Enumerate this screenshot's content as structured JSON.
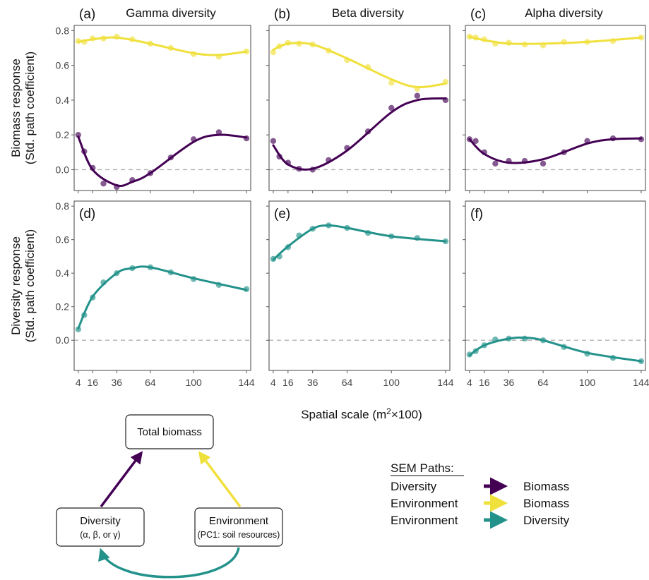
{
  "figure": {
    "xlabel_prefix": "Spatial scale (m",
    "xlabel_sup": "2",
    "xlabel_suffix": "×100)",
    "ylabel_top_line1": "Biomass response",
    "ylabel_top_line2": "(Std. path coefficient)",
    "ylabel_bottom_line1": "Diversity response",
    "ylabel_bottom_line2": "(Std. path coefficient)",
    "colors": {
      "environment": "#f0e03c",
      "diversity": "#440154",
      "env_diversity": "#23928b",
      "zero_line": "#b0b0b0",
      "frame": "#555555"
    }
  },
  "chart_data": [
    {
      "type": "scatter",
      "panel_label": "(a)",
      "title": "Gamma diversity",
      "x_ticks": [
        4,
        16,
        36,
        64,
        100,
        144
      ],
      "y_ticks": [
        "0.0",
        "0.2",
        "0.4",
        "0.6",
        "0.8"
      ],
      "ylim": [
        -0.12,
        0.83
      ],
      "series": [
        {
          "key": "environment",
          "color": "#f0e03c",
          "x": [
            4,
            9,
            16,
            25,
            36,
            49,
            64,
            81,
            100,
            121,
            144
          ],
          "y": [
            0.74,
            0.735,
            0.755,
            0.755,
            0.765,
            0.75,
            0.725,
            0.7,
            0.665,
            0.65,
            0.68
          ],
          "fit": [
            [
              4,
              0.735
            ],
            [
              16,
              0.75
            ],
            [
              36,
              0.76
            ],
            [
              64,
              0.725
            ],
            [
              100,
              0.67
            ],
            [
              121,
              0.66
            ],
            [
              144,
              0.68
            ]
          ]
        },
        {
          "key": "diversity",
          "color": "#440154",
          "x": [
            4,
            9,
            16,
            25,
            36,
            49,
            64,
            81,
            100,
            121,
            144
          ],
          "y": [
            0.2,
            0.105,
            0.01,
            -0.08,
            -0.1,
            -0.06,
            -0.02,
            0.07,
            0.175,
            0.215,
            0.18
          ],
          "fit": [
            [
              4,
              0.19
            ],
            [
              16,
              0.0
            ],
            [
              36,
              -0.09
            ],
            [
              49,
              -0.07
            ],
            [
              64,
              -0.02
            ],
            [
              100,
              0.16
            ],
            [
              121,
              0.2
            ],
            [
              144,
              0.185
            ]
          ]
        }
      ]
    },
    {
      "type": "scatter",
      "panel_label": "(b)",
      "title": "Beta diversity",
      "x_ticks": [
        4,
        16,
        36,
        64,
        100,
        144
      ],
      "y_ticks": [
        "0.0",
        "0.2",
        "0.4",
        "0.6",
        "0.8"
      ],
      "ylim": [
        -0.12,
        0.83
      ],
      "series": [
        {
          "key": "environment",
          "color": "#f0e03c",
          "x": [
            4,
            9,
            16,
            25,
            36,
            49,
            64,
            81,
            100,
            121,
            144
          ],
          "y": [
            0.675,
            0.71,
            0.73,
            0.725,
            0.72,
            0.685,
            0.63,
            0.59,
            0.5,
            0.465,
            0.505
          ],
          "fit": [
            [
              4,
              0.69
            ],
            [
              16,
              0.725
            ],
            [
              36,
              0.72
            ],
            [
              64,
              0.64
            ],
            [
              100,
              0.52
            ],
            [
              121,
              0.475
            ],
            [
              144,
              0.495
            ]
          ]
        },
        {
          "key": "diversity",
          "color": "#440154",
          "x": [
            4,
            9,
            16,
            25,
            36,
            49,
            64,
            81,
            100,
            121,
            144
          ],
          "y": [
            0.165,
            0.075,
            0.04,
            0.005,
            0.0,
            0.055,
            0.125,
            0.22,
            0.355,
            0.425,
            0.4
          ],
          "fit": [
            [
              4,
              0.14
            ],
            [
              16,
              0.03
            ],
            [
              36,
              0.005
            ],
            [
              64,
              0.11
            ],
            [
              100,
              0.33
            ],
            [
              121,
              0.4
            ],
            [
              144,
              0.41
            ]
          ]
        }
      ]
    },
    {
      "type": "scatter",
      "panel_label": "(c)",
      "title": "Alpha diversity",
      "x_ticks": [
        4,
        16,
        36,
        64,
        100,
        144
      ],
      "y_ticks": [
        "0.0",
        "0.2",
        "0.4",
        "0.6",
        "0.8"
      ],
      "ylim": [
        -0.12,
        0.83
      ],
      "series": [
        {
          "key": "environment",
          "color": "#f0e03c",
          "x": [
            4,
            9,
            16,
            25,
            36,
            49,
            64,
            81,
            100,
            121,
            144
          ],
          "y": [
            0.765,
            0.76,
            0.75,
            0.725,
            0.73,
            0.72,
            0.715,
            0.735,
            0.735,
            0.74,
            0.76
          ],
          "fit": [
            [
              4,
              0.765
            ],
            [
              16,
              0.745
            ],
            [
              36,
              0.725
            ],
            [
              64,
              0.725
            ],
            [
              100,
              0.735
            ],
            [
              144,
              0.76
            ]
          ]
        },
        {
          "key": "diversity",
          "color": "#440154",
          "x": [
            4,
            9,
            16,
            25,
            36,
            49,
            64,
            81,
            100,
            121,
            144
          ],
          "y": [
            0.175,
            0.165,
            0.1,
            0.035,
            0.05,
            0.05,
            0.035,
            0.1,
            0.165,
            0.18,
            0.175
          ],
          "fit": [
            [
              4,
              0.175
            ],
            [
              16,
              0.09
            ],
            [
              36,
              0.04
            ],
            [
              64,
              0.06
            ],
            [
              100,
              0.15
            ],
            [
              121,
              0.175
            ],
            [
              144,
              0.18
            ]
          ]
        }
      ]
    },
    {
      "type": "scatter",
      "panel_label": "(d)",
      "title": "",
      "x_ticks": [
        4,
        16,
        36,
        64,
        100,
        144
      ],
      "y_ticks": [
        "0.0",
        "0.2",
        "0.4",
        "0.6",
        "0.8"
      ],
      "ylim": [
        -0.18,
        0.83
      ],
      "series": [
        {
          "key": "env_diversity",
          "color": "#23928b",
          "x": [
            4,
            9,
            16,
            25,
            36,
            49,
            64,
            81,
            100,
            121,
            144
          ],
          "y": [
            0.065,
            0.15,
            0.255,
            0.345,
            0.4,
            0.43,
            0.435,
            0.405,
            0.365,
            0.33,
            0.305
          ],
          "fit": [
            [
              4,
              0.07
            ],
            [
              16,
              0.26
            ],
            [
              36,
              0.4
            ],
            [
              49,
              0.43
            ],
            [
              64,
              0.435
            ],
            [
              100,
              0.37
            ],
            [
              144,
              0.3
            ]
          ]
        }
      ]
    },
    {
      "type": "scatter",
      "panel_label": "(e)",
      "title": "",
      "x_ticks": [
        4,
        16,
        36,
        64,
        100,
        144
      ],
      "y_ticks": [
        "0.0",
        "0.2",
        "0.4",
        "0.6",
        "0.8"
      ],
      "ylim": [
        -0.18,
        0.83
      ],
      "series": [
        {
          "key": "env_diversity",
          "color": "#23928b",
          "x": [
            4,
            9,
            16,
            25,
            36,
            49,
            64,
            81,
            100,
            121,
            144
          ],
          "y": [
            0.485,
            0.5,
            0.555,
            0.625,
            0.665,
            0.685,
            0.67,
            0.64,
            0.62,
            0.61,
            0.59
          ],
          "fit": [
            [
              4,
              0.48
            ],
            [
              16,
              0.56
            ],
            [
              36,
              0.665
            ],
            [
              49,
              0.685
            ],
            [
              64,
              0.67
            ],
            [
              100,
              0.62
            ],
            [
              144,
              0.59
            ]
          ]
        }
      ]
    },
    {
      "type": "scatter",
      "panel_label": "(f)",
      "title": "",
      "x_ticks": [
        4,
        16,
        36,
        64,
        100,
        144
      ],
      "y_ticks": [
        "0.0",
        "0.2",
        "0.4",
        "0.6",
        "0.8"
      ],
      "ylim": [
        -0.18,
        0.83
      ],
      "series": [
        {
          "key": "env_diversity",
          "color": "#23928b",
          "x": [
            4,
            9,
            16,
            25,
            36,
            49,
            64,
            81,
            100,
            121,
            144
          ],
          "y": [
            -0.085,
            -0.065,
            -0.03,
            0.005,
            0.01,
            0.01,
            0.0,
            -0.04,
            -0.08,
            -0.105,
            -0.125
          ],
          "fit": [
            [
              4,
              -0.09
            ],
            [
              16,
              -0.03
            ],
            [
              36,
              0.01
            ],
            [
              49,
              0.015
            ],
            [
              64,
              0.0
            ],
            [
              100,
              -0.075
            ],
            [
              144,
              -0.125
            ]
          ]
        }
      ]
    }
  ],
  "diagram": {
    "total_biomass": "Total biomass",
    "diversity_line1": "Diversity",
    "diversity_line2": "(α, β, or γ)",
    "environment_line1": "Environment",
    "environment_line2": "(PC1: soil resources)"
  },
  "legend": {
    "title": "SEM Paths:",
    "rows": [
      {
        "from": "Diversity",
        "to": "Biomass",
        "color": "#440154"
      },
      {
        "from": "Environment",
        "to": "Biomass",
        "color": "#f0e03c"
      },
      {
        "from": "Environment",
        "to": "Diversity",
        "color": "#23928b"
      }
    ]
  }
}
